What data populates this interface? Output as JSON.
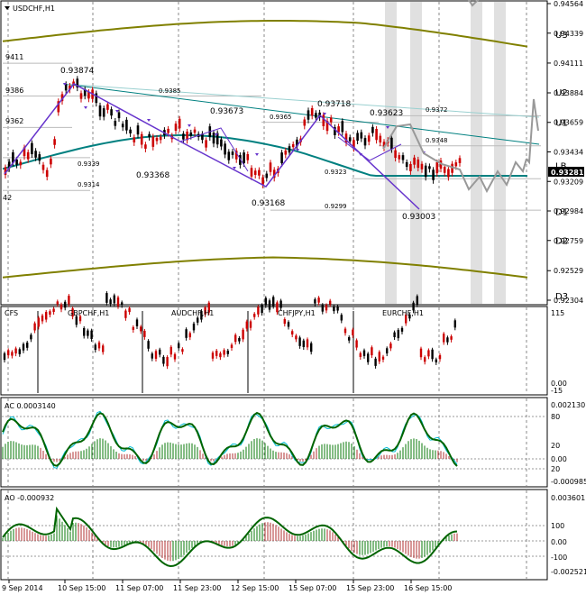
{
  "window": {
    "symbol_label": "USDCHF,H1"
  },
  "price_axis": {
    "ticks": [
      "0.94564",
      "0.94339",
      "0.94111",
      "0.93884",
      "0.93659",
      "0.93434",
      "0.93209",
      "0.92984",
      "0.92759",
      "0.92529",
      "0.92304"
    ],
    "levels": [
      {
        "label": "U3",
        "price": 0.9433
      },
      {
        "label": "U2",
        "price": 0.9389
      },
      {
        "label": "U1",
        "price": 0.9366
      },
      {
        "label": "LB",
        "price": 0.9333
      },
      {
        "label": "D1",
        "price": 0.9298
      },
      {
        "label": "D2",
        "price": 0.9276
      },
      {
        "label": "D3",
        "price": 0.9234
      }
    ],
    "current_price": "0.93281",
    "current_price_value": 0.93281
  },
  "left_labels": [
    "9411",
    "9386",
    "9362",
    "42"
  ],
  "pivot_labels": [
    {
      "text": "0.93874",
      "price": 0.9395
    },
    {
      "text": "0.9385",
      "price": 0.9388
    },
    {
      "text": "0.93673",
      "price": 0.9369
    },
    {
      "text": "0.9365",
      "price": 0.9366
    },
    {
      "text": "0.93718",
      "price": 0.9374
    },
    {
      "text": "0.93623",
      "price": 0.937
    },
    {
      "text": "0.9372",
      "price": 0.9371
    },
    {
      "text": "0.9348",
      "price": 0.9348
    },
    {
      "text": "0.9339",
      "price": 0.9339
    },
    {
      "text": "0.9314",
      "price": 0.9318
    },
    {
      "text": "0.93368",
      "price": 0.933
    },
    {
      "text": "0.9323",
      "price": 0.9331
    },
    {
      "text": "0.93168",
      "price": 0.9304
    },
    {
      "text": "0.9299",
      "price": 0.9302
    },
    {
      "text": "0.93003",
      "price": 0.9291
    }
  ],
  "cfs_panel": {
    "label": "CFS",
    "pairs": [
      "GBPCHF,H1",
      "AUDCHF,H1",
      "CHFJPY,H1",
      "EURCHF,H1"
    ],
    "scale_top": "115",
    "scale_zero": "0.00",
    "scale_bottom": "-15"
  },
  "ac_panel": {
    "label": "AC 0.0003140",
    "scale": [
      "0.002130",
      "80",
      "20",
      "0.00",
      "20",
      "-0.000985"
    ]
  },
  "ao_panel": {
    "label": "AO -0.000932",
    "scale": [
      "0.003601",
      "100",
      "0.00",
      "-100",
      "-0.002521"
    ]
  },
  "time_axis": {
    "labels": [
      "9 Sep 2014",
      "10 Sep 15:00",
      "11 Sep 07:00",
      "11 Sep 23:00",
      "12 Sep 15:00",
      "15 Sep 07:00",
      "15 Sep 23:00",
      "16 Sep 15:00"
    ]
  },
  "colors": {
    "bull_candle": "#000000",
    "bear_candle": "#cc0000",
    "mid_line": "#008080",
    "envelope": "#808000",
    "zigzag": "#6633cc",
    "forecast": "#999999",
    "ac_fast": "#006400",
    "ac_slow": "#00bcd4"
  }
}
